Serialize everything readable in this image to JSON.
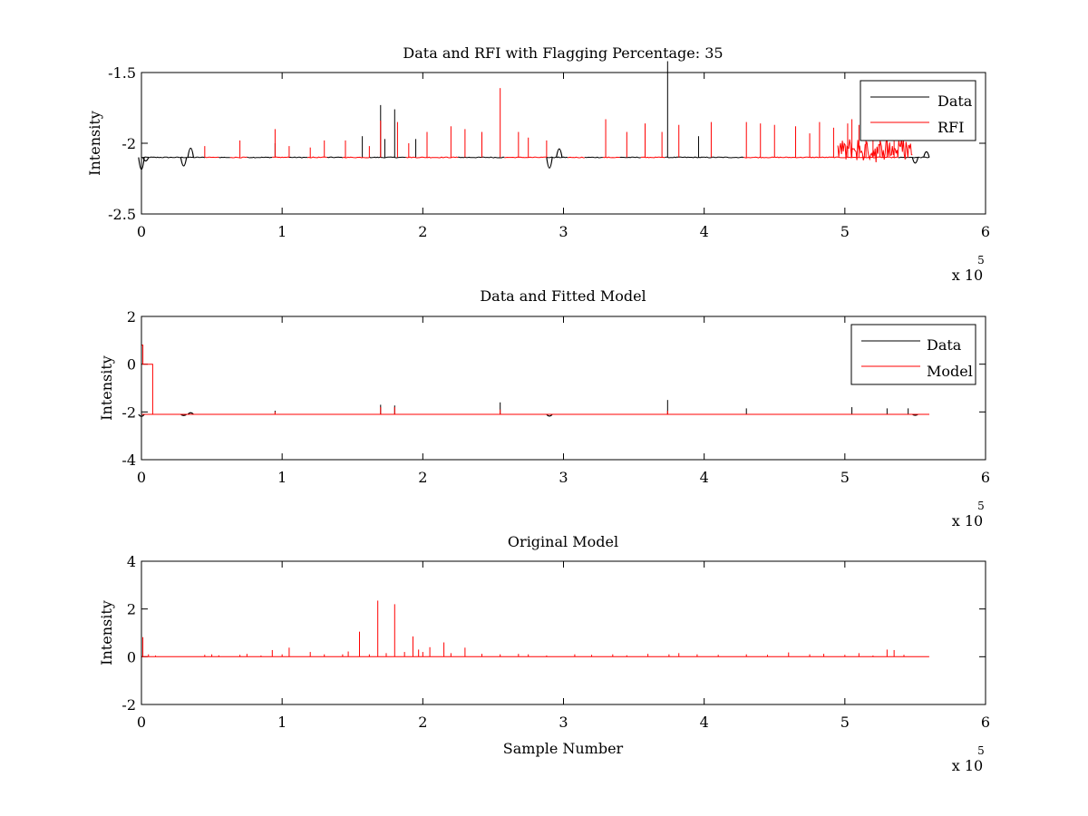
{
  "chart_data": [
    {
      "type": "line",
      "title": "Data and RFI with Flagging Percentage: 35",
      "xlabel": "",
      "ylabel": "Intensity",
      "xlim": [
        0,
        6
      ],
      "ylim": [
        -2.5,
        -1.5
      ],
      "xticks": [
        0,
        1,
        2,
        3,
        4,
        5,
        6
      ],
      "yticks": [
        -2.5,
        -2,
        -1.5
      ],
      "ytick_labels": [
        "-2.5",
        "-2",
        "-1.5"
      ],
      "x_multiplier": "x 10",
      "x_multiplier_exp": "5",
      "legend": {
        "position": "top-right",
        "entries": [
          {
            "name": "Data",
            "color": "#000000"
          },
          {
            "name": "RFI",
            "color": "#ff0000"
          }
        ]
      },
      "series": [
        {
          "name": "Data",
          "color": "#000000",
          "baseline": -2.1,
          "segments": [
            [
              0,
              0.45
            ],
            [
              0.55,
              0.63
            ],
            [
              0.75,
              0.93
            ],
            [
              1.05,
              1.18
            ],
            [
              1.32,
              1.43
            ],
            [
              1.62,
              1.88
            ],
            [
              2.25,
              2.58
            ],
            [
              2.88,
              3.03
            ],
            [
              3.15,
              3.28
            ],
            [
              3.4,
              3.55
            ],
            [
              3.72,
              4.28
            ],
            [
              5.38,
              5.6
            ]
          ],
          "features": [
            [
              0,
              -2.27
            ],
            [
              0.03,
              -2.15
            ],
            [
              0.3,
              -2.22
            ],
            [
              0.35,
              -1.97
            ],
            [
              2.9,
              -2.25
            ],
            [
              2.97,
              -1.98
            ],
            [
              5.5,
              -2.18
            ],
            [
              5.58,
              -2.02
            ]
          ],
          "spikes": [
            [
              0.95,
              -2.0
            ],
            [
              1.57,
              -1.95
            ],
            [
              1.7,
              -1.73
            ],
            [
              1.73,
              -1.97
            ],
            [
              1.8,
              -1.76
            ],
            [
              1.95,
              -1.97
            ],
            [
              3.74,
              -1.42
            ],
            [
              3.96,
              -1.95
            ]
          ]
        },
        {
          "name": "RFI",
          "color": "#ff0000",
          "baseline": -2.1,
          "segments": [
            [
              0.45,
              0.55
            ],
            [
              0.63,
              0.75
            ],
            [
              0.93,
              1.05
            ],
            [
              1.18,
              1.32
            ],
            [
              1.43,
              1.62
            ],
            [
              1.88,
              2.25
            ],
            [
              2.58,
              2.88
            ],
            [
              3.03,
              3.15
            ],
            [
              3.28,
              3.4
            ],
            [
              3.55,
              3.72
            ],
            [
              4.28,
              5.38
            ]
          ],
          "spikes": [
            [
              0.45,
              -2.02
            ],
            [
              0.7,
              -1.98
            ],
            [
              0.95,
              -1.9
            ],
            [
              1.05,
              -2.02
            ],
            [
              1.2,
              -2.03
            ],
            [
              1.3,
              -1.98
            ],
            [
              1.45,
              -1.98
            ],
            [
              1.62,
              -2.02
            ],
            [
              1.7,
              -1.84
            ],
            [
              1.82,
              -1.85
            ],
            [
              1.9,
              -2.0
            ],
            [
              2.03,
              -1.92
            ],
            [
              2.2,
              -1.88
            ],
            [
              2.3,
              -1.9
            ],
            [
              2.42,
              -1.92
            ],
            [
              2.55,
              -1.61
            ],
            [
              2.68,
              -1.92
            ],
            [
              2.75,
              -1.96
            ],
            [
              2.88,
              -1.98
            ],
            [
              3.3,
              -1.83
            ],
            [
              3.45,
              -1.92
            ],
            [
              3.58,
              -1.86
            ],
            [
              3.7,
              -1.92
            ],
            [
              3.82,
              -1.87
            ],
            [
              4.05,
              -1.85
            ],
            [
              4.3,
              -1.85
            ],
            [
              4.4,
              -1.86
            ],
            [
              4.5,
              -1.87
            ],
            [
              4.65,
              -1.88
            ],
            [
              4.75,
              -1.93
            ],
            [
              4.82,
              -1.85
            ],
            [
              4.92,
              -1.89
            ],
            [
              5.02,
              -1.86
            ],
            [
              5.05,
              -1.83
            ],
            [
              5.1,
              -1.87
            ],
            [
              5.15,
              -1.93
            ],
            [
              5.2,
              -1.89
            ],
            [
              5.25,
              -1.84
            ],
            [
              5.3,
              -1.88
            ],
            [
              5.35,
              -1.92
            ]
          ],
          "noisy_range": [
            4.95,
            5.48
          ],
          "noisy_max": -1.95
        }
      ]
    },
    {
      "type": "line",
      "title": "Data and Fitted Model",
      "xlabel": "",
      "ylabel": "Intensity",
      "xlim": [
        0,
        6
      ],
      "ylim": [
        -4,
        2
      ],
      "xticks": [
        0,
        1,
        2,
        3,
        4,
        5,
        6
      ],
      "yticks": [
        -4,
        -2,
        0,
        2
      ],
      "ytick_labels": [
        "-4",
        "-2",
        "0",
        "2"
      ],
      "x_multiplier": "x 10",
      "x_multiplier_exp": "5",
      "legend": {
        "position": "top-right",
        "entries": [
          {
            "name": "Data",
            "color": "#000000"
          },
          {
            "name": "Model",
            "color": "#ff0000"
          }
        ]
      },
      "series": [
        {
          "name": "Data",
          "color": "#000000",
          "baseline": -2.1,
          "features": [
            [
              0,
              -2.27
            ],
            [
              0.3,
              -2.2
            ],
            [
              0.35,
              -1.97
            ],
            [
              2.9,
              -2.25
            ],
            [
              5.5,
              -2.18
            ]
          ],
          "spikes": [
            [
              0.95,
              -1.95
            ],
            [
              1.7,
              -1.7
            ],
            [
              1.8,
              -1.73
            ],
            [
              2.55,
              -1.6
            ],
            [
              3.74,
              -1.5
            ],
            [
              4.3,
              -1.85
            ],
            [
              5.05,
              -1.8
            ],
            [
              5.3,
              -1.85
            ],
            [
              5.45,
              -1.85
            ]
          ]
        },
        {
          "name": "Model",
          "color": "#ff0000",
          "baseline": -2.1,
          "steps": [
            [
              0,
              0.8
            ],
            [
              0.01,
              0.0
            ],
            [
              0.08,
              -2.1
            ]
          ],
          "spikes": [
            [
              0.95,
              -2.0
            ],
            [
              1.7,
              -1.8
            ],
            [
              1.8,
              -1.8
            ],
            [
              2.55,
              -1.9
            ],
            [
              3.74,
              -1.95
            ]
          ]
        }
      ]
    },
    {
      "type": "line",
      "title": "Original Model",
      "xlabel": "Sample Number",
      "ylabel": "Intensity",
      "xlim": [
        0,
        6
      ],
      "ylim": [
        -2,
        4
      ],
      "xticks": [
        0,
        1,
        2,
        3,
        4,
        5,
        6
      ],
      "yticks": [
        -2,
        0,
        2,
        4
      ],
      "ytick_labels": [
        "-2",
        "0",
        "2",
        "4"
      ],
      "x_multiplier": "x 10",
      "x_multiplier_exp": "5",
      "series": [
        {
          "name": "",
          "color": "#ff0000",
          "baseline": 0,
          "xrange": [
            0,
            5.6
          ],
          "spikes": [
            [
              0.01,
              0.82
            ],
            [
              0.05,
              0.1
            ],
            [
              0.1,
              0.05
            ],
            [
              0.45,
              0.08
            ],
            [
              0.5,
              0.1
            ],
            [
              0.55,
              0.06
            ],
            [
              0.7,
              0.08
            ],
            [
              0.75,
              0.12
            ],
            [
              0.85,
              0.05
            ],
            [
              0.93,
              0.28
            ],
            [
              1.0,
              0.1
            ],
            [
              1.05,
              0.38
            ],
            [
              1.2,
              0.2
            ],
            [
              1.3,
              0.1
            ],
            [
              1.43,
              0.1
            ],
            [
              1.47,
              0.22
            ],
            [
              1.55,
              1.05
            ],
            [
              1.62,
              0.1
            ],
            [
              1.68,
              2.35
            ],
            [
              1.74,
              0.15
            ],
            [
              1.8,
              2.2
            ],
            [
              1.87,
              0.2
            ],
            [
              1.93,
              0.85
            ],
            [
              1.97,
              0.3
            ],
            [
              2.0,
              0.2
            ],
            [
              2.05,
              0.4
            ],
            [
              2.15,
              0.6
            ],
            [
              2.2,
              0.15
            ],
            [
              2.3,
              0.38
            ],
            [
              2.42,
              0.12
            ],
            [
              2.55,
              0.1
            ],
            [
              2.68,
              0.12
            ],
            [
              2.75,
              0.1
            ],
            [
              2.88,
              0.05
            ],
            [
              3.08,
              0.1
            ],
            [
              3.2,
              0.08
            ],
            [
              3.35,
              0.1
            ],
            [
              3.45,
              0.06
            ],
            [
              3.6,
              0.12
            ],
            [
              3.75,
              0.1
            ],
            [
              3.82,
              0.15
            ],
            [
              3.95,
              0.1
            ],
            [
              4.1,
              0.08
            ],
            [
              4.3,
              0.1
            ],
            [
              4.45,
              0.08
            ],
            [
              4.6,
              0.18
            ],
            [
              4.75,
              0.1
            ],
            [
              4.85,
              0.12
            ],
            [
              5.0,
              0.08
            ],
            [
              5.1,
              0.15
            ],
            [
              5.2,
              0.05
            ],
            [
              5.3,
              0.3
            ],
            [
              5.35,
              0.28
            ],
            [
              5.42,
              0.08
            ]
          ]
        }
      ]
    }
  ]
}
